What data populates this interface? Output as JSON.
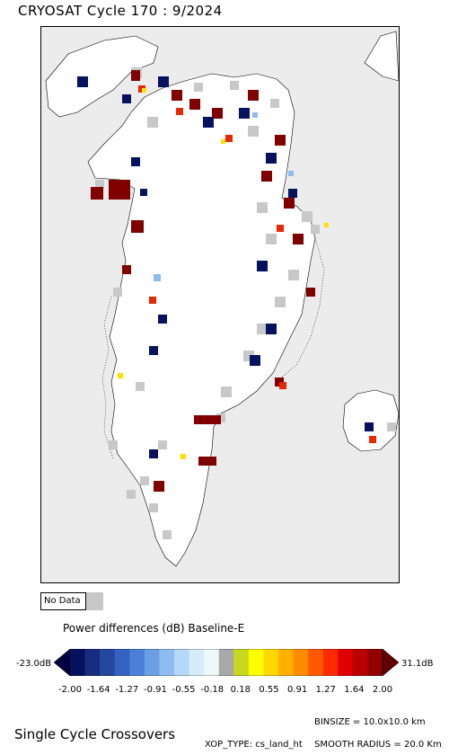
{
  "title": "CRYOSAT Cycle 170 : 9/2024",
  "legend": {
    "nodata_label": "No Data",
    "nodata_color": "#c8c8c8",
    "colorbar_title": "Power differences (dB) Baseline-E",
    "min_label": "-23.0dB",
    "max_label": "31.1dB",
    "ticks": [
      "-2.00",
      "-1.64",
      "-1.27",
      "-0.91",
      "-0.55",
      "-0.18",
      "0.18",
      "0.55",
      "0.91",
      "1.27",
      "1.64",
      "2.00"
    ],
    "colors": [
      "#000040",
      "#06125e",
      "#1a2c80",
      "#25479f",
      "#3561c0",
      "#4c7fd8",
      "#6c9ee6",
      "#8fbcf0",
      "#b5d8f8",
      "#d6ecfb",
      "#eef8fb",
      "#a8a8a8",
      "#c8d820",
      "#ffff00",
      "#ffd800",
      "#ffb000",
      "#ff8c00",
      "#ff5a00",
      "#ff2a00",
      "#e00000",
      "#b80000",
      "#900000",
      "#600000"
    ]
  },
  "footer": {
    "left": "Single Cycle Crossovers",
    "binsize": "BINSIZE = 10.0x10.0 km",
    "xop": "XOP_TYPE: cs_land_ht",
    "smooth": "SMOOTH RADIUS =  20.0 Km"
  }
}
